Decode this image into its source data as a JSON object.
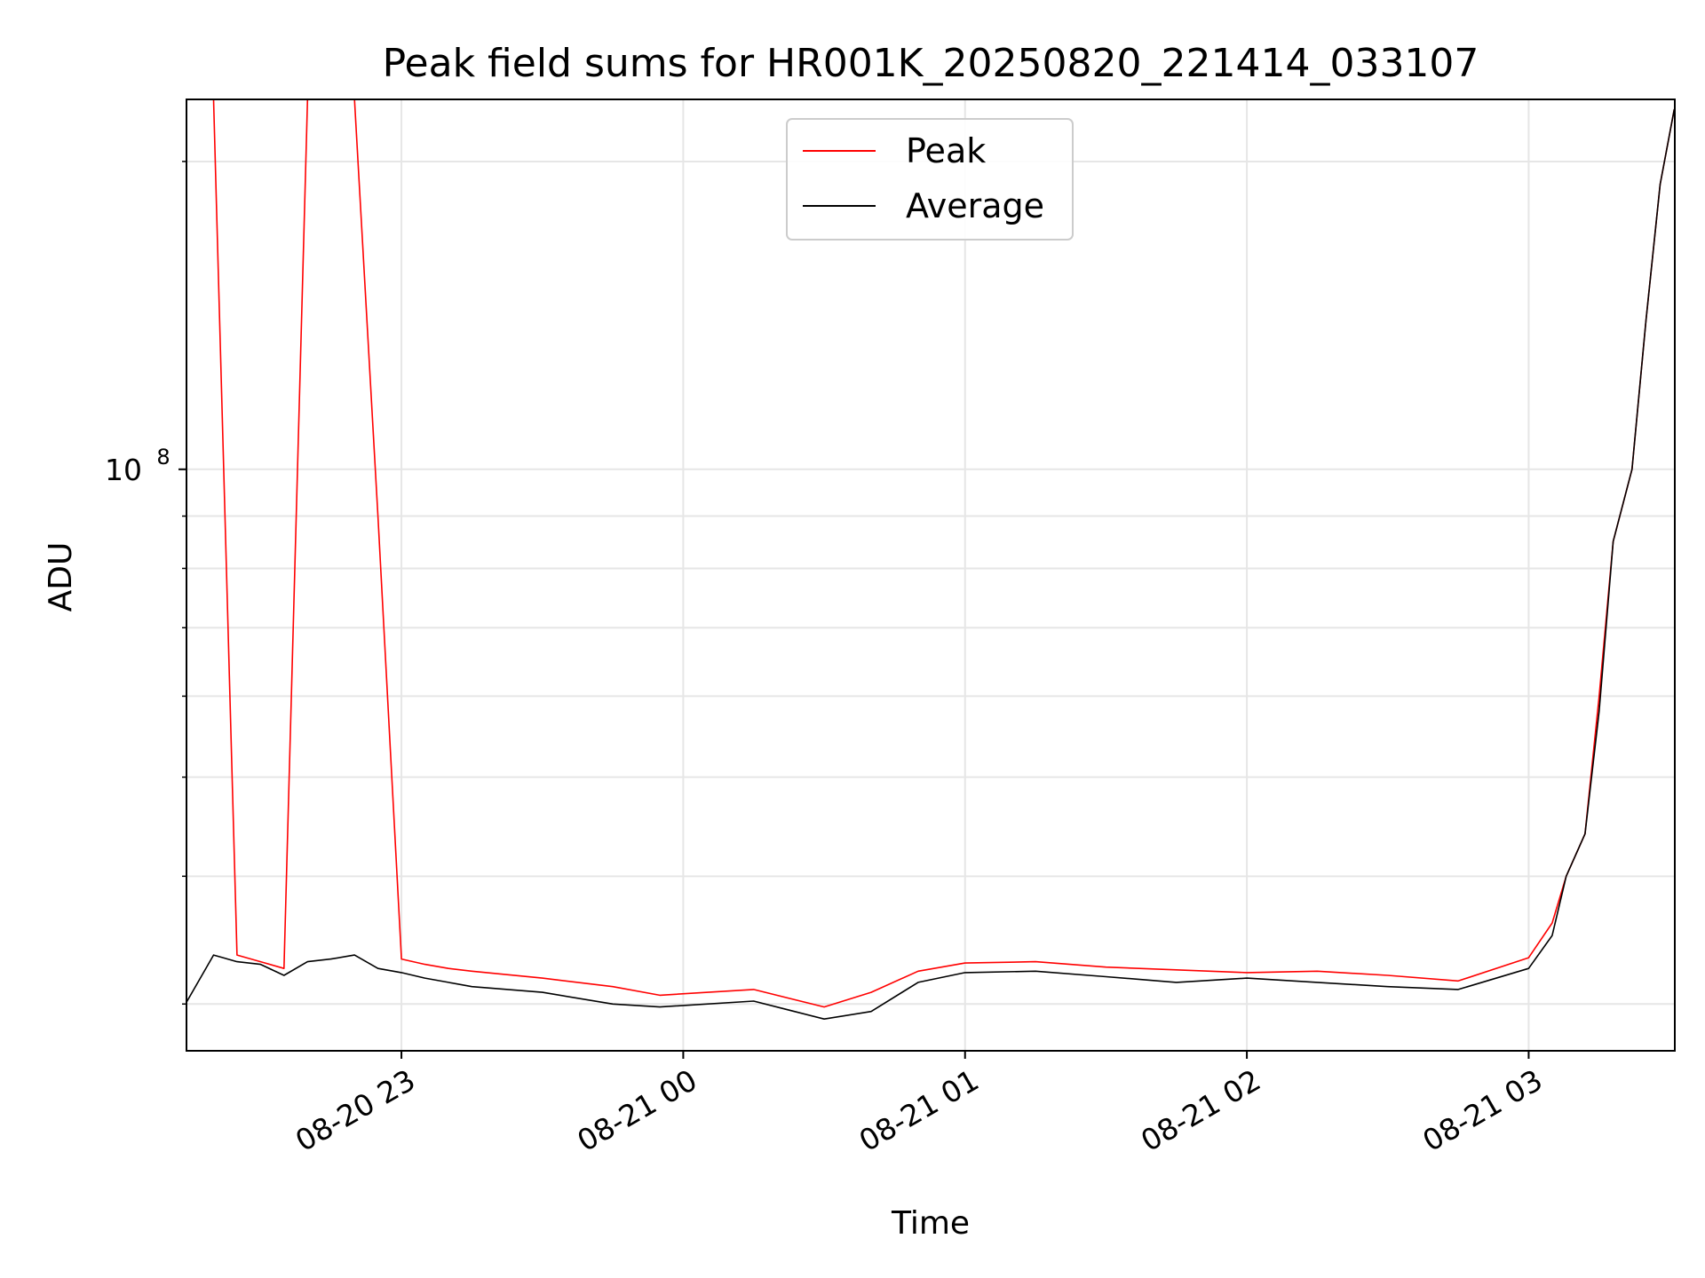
{
  "chart_data": {
    "type": "line",
    "title": "Peak field sums for HR001K_20250820_221414_033107",
    "xlabel": "Time",
    "ylabel": "ADU",
    "y_scale": "log",
    "ylim": [
      27000000,
      230000000
    ],
    "xlim": [
      "2025-08-20 22:14:14",
      "2025-08-21 03:31:07"
    ],
    "x_ticks": [
      {
        "t": "2025-08-20 23:00",
        "label": "08-20 23"
      },
      {
        "t": "2025-08-21 00:00",
        "label": "08-21 00"
      },
      {
        "t": "2025-08-21 01:00",
        "label": "08-21 01"
      },
      {
        "t": "2025-08-21 02:00",
        "label": "08-21 02"
      },
      {
        "t": "2025-08-21 03:00",
        "label": "08-21 03"
      }
    ],
    "y_ticks": [
      {
        "v": 100000000,
        "label_base": "10",
        "label_exp": "8"
      }
    ],
    "grid": true,
    "legend_position": "upper center",
    "series": [
      {
        "name": "Peak",
        "color": "#ff0000",
        "x": [
          "2025-08-20 22:14",
          "2025-08-20 22:20",
          "2025-08-20 22:25",
          "2025-08-20 22:30",
          "2025-08-20 22:35",
          "2025-08-20 22:40",
          "2025-08-20 22:45",
          "2025-08-20 22:50",
          "2025-08-20 22:55",
          "2025-08-20 23:00",
          "2025-08-20 23:05",
          "2025-08-20 23:10",
          "2025-08-20 23:15",
          "2025-08-20 23:30",
          "2025-08-20 23:45",
          "2025-08-20 23:55",
          "2025-08-21 00:15",
          "2025-08-21 00:30",
          "2025-08-21 00:40",
          "2025-08-21 00:50",
          "2025-08-21 01:00",
          "2025-08-21 01:15",
          "2025-08-21 01:30",
          "2025-08-21 01:45",
          "2025-08-21 02:00",
          "2025-08-21 02:15",
          "2025-08-21 02:30",
          "2025-08-21 02:45",
          "2025-08-21 03:00",
          "2025-08-21 03:05",
          "2025-08-21 03:08",
          "2025-08-21 03:12",
          "2025-08-21 03:15",
          "2025-08-21 03:18",
          "2025-08-21 03:22",
          "2025-08-21 03:25",
          "2025-08-21 03:28",
          "2025-08-21 03:31"
        ],
        "values": [
          230000000,
          230000000,
          33500000,
          33000000,
          32500000,
          230000000,
          230000000,
          230000000,
          90000000,
          33200000,
          32800000,
          32500000,
          32300000,
          31800000,
          31200000,
          30600000,
          31000000,
          29800000,
          30800000,
          32300000,
          32900000,
          33000000,
          32600000,
          32400000,
          32200000,
          32300000,
          32000000,
          31600000,
          33300000,
          36000000,
          40000000,
          44000000,
          60000000,
          85000000,
          100000000,
          140000000,
          190000000,
          225000000
        ]
      },
      {
        "name": "Average",
        "color": "#000000",
        "x": [
          "2025-08-20 22:14",
          "2025-08-20 22:20",
          "2025-08-20 22:25",
          "2025-08-20 22:30",
          "2025-08-20 22:35",
          "2025-08-20 22:40",
          "2025-08-20 22:45",
          "2025-08-20 22:50",
          "2025-08-20 22:55",
          "2025-08-20 23:00",
          "2025-08-20 23:05",
          "2025-08-20 23:10",
          "2025-08-20 23:15",
          "2025-08-20 23:30",
          "2025-08-20 23:45",
          "2025-08-20 23:55",
          "2025-08-21 00:15",
          "2025-08-21 00:30",
          "2025-08-21 00:40",
          "2025-08-21 00:50",
          "2025-08-21 01:00",
          "2025-08-21 01:15",
          "2025-08-21 01:30",
          "2025-08-21 01:45",
          "2025-08-21 02:00",
          "2025-08-21 02:15",
          "2025-08-21 02:30",
          "2025-08-21 02:45",
          "2025-08-21 03:00",
          "2025-08-21 03:05",
          "2025-08-21 03:08",
          "2025-08-21 03:12",
          "2025-08-21 03:15",
          "2025-08-21 03:18",
          "2025-08-21 03:22",
          "2025-08-21 03:25",
          "2025-08-21 03:28",
          "2025-08-21 03:31"
        ],
        "values": [
          30000000,
          33500000,
          33000000,
          32800000,
          32000000,
          33000000,
          33200000,
          33500000,
          32500000,
          32200000,
          31800000,
          31500000,
          31200000,
          30800000,
          30000000,
          29800000,
          30200000,
          29000000,
          29500000,
          31500000,
          32200000,
          32300000,
          31900000,
          31500000,
          31800000,
          31500000,
          31200000,
          31000000,
          32500000,
          35000000,
          40000000,
          44000000,
          58000000,
          85000000,
          100000000,
          140000000,
          190000000,
          225000000
        ]
      }
    ]
  }
}
